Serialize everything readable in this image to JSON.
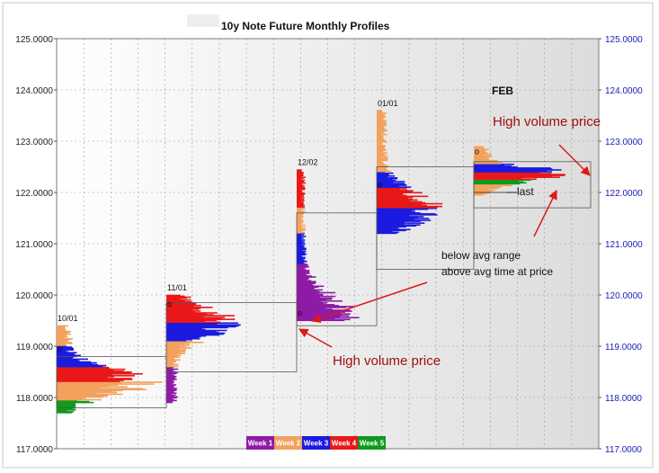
{
  "chart_data": {
    "type": "bar",
    "title": "10y Note Future Monthly Profiles",
    "month_label": "FEB",
    "ylim": [
      117.0,
      125.0
    ],
    "y_ticks": [
      "117.0000",
      "118.0000",
      "119.0000",
      "120.0000",
      "121.0000",
      "122.0000",
      "123.0000",
      "124.0000",
      "125.0000"
    ],
    "grid": true,
    "legend_position": "bottom-center",
    "series": [
      {
        "name": "Week 1",
        "color": "#8e1aa6"
      },
      {
        "name": "Week 2",
        "color": "#f2a25c"
      },
      {
        "name": "Week 3",
        "color": "#1a1ae0"
      },
      {
        "name": "Week 4",
        "color": "#e81818"
      },
      {
        "name": "Week 5",
        "color": "#10991c"
      }
    ],
    "profiles": [
      {
        "label": "10/01",
        "low": 117.7,
        "high": 119.4,
        "high_volume_price": 118.3,
        "range_low": 117.8,
        "range_high": 118.8
      },
      {
        "label": "11/01",
        "low": 117.9,
        "high": 120.0,
        "high_volume_price": 119.45,
        "range_low": 118.5,
        "range_high": 119.85
      },
      {
        "label": "12/02",
        "low": 119.5,
        "high": 122.45,
        "high_volume_price": 119.6,
        "range_low": 119.4,
        "range_high": 121.6
      },
      {
        "label": "01/01",
        "low": 121.2,
        "high": 123.6,
        "high_volume_price": 121.7,
        "range_low": 120.5,
        "range_high": 122.5
      },
      {
        "label": "",
        "low": 121.95,
        "high": 122.9,
        "high_volume_price": 122.35,
        "range_low": 121.7,
        "range_high": 122.6
      }
    ],
    "annotations": [
      "High volume price",
      "—last",
      "below avg range",
      "above avg time at price",
      "High volume price"
    ]
  }
}
